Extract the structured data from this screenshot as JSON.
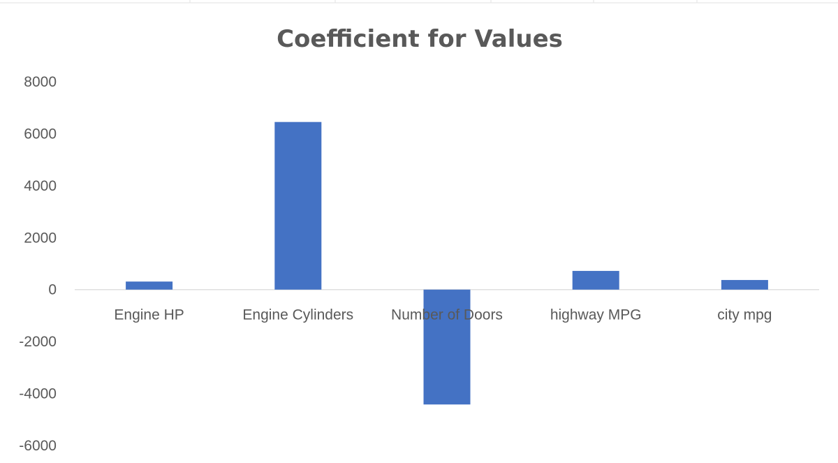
{
  "chart_data": {
    "type": "bar",
    "title": "Coefficient for Values",
    "xlabel": "",
    "ylabel": "",
    "categories": [
      "Engine HP",
      "Engine Cylinders",
      "Number of Doors",
      "highway MPG",
      "city mpg"
    ],
    "values": [
      310,
      6450,
      -4420,
      720,
      370
    ],
    "ylim": [
      -6000,
      8000
    ],
    "yticks": [
      8000,
      6000,
      4000,
      2000,
      0,
      -2000,
      -4000,
      -6000
    ],
    "grid": false,
    "legend": "none",
    "bar_color": "#4472c4",
    "text_color": "#595959"
  }
}
